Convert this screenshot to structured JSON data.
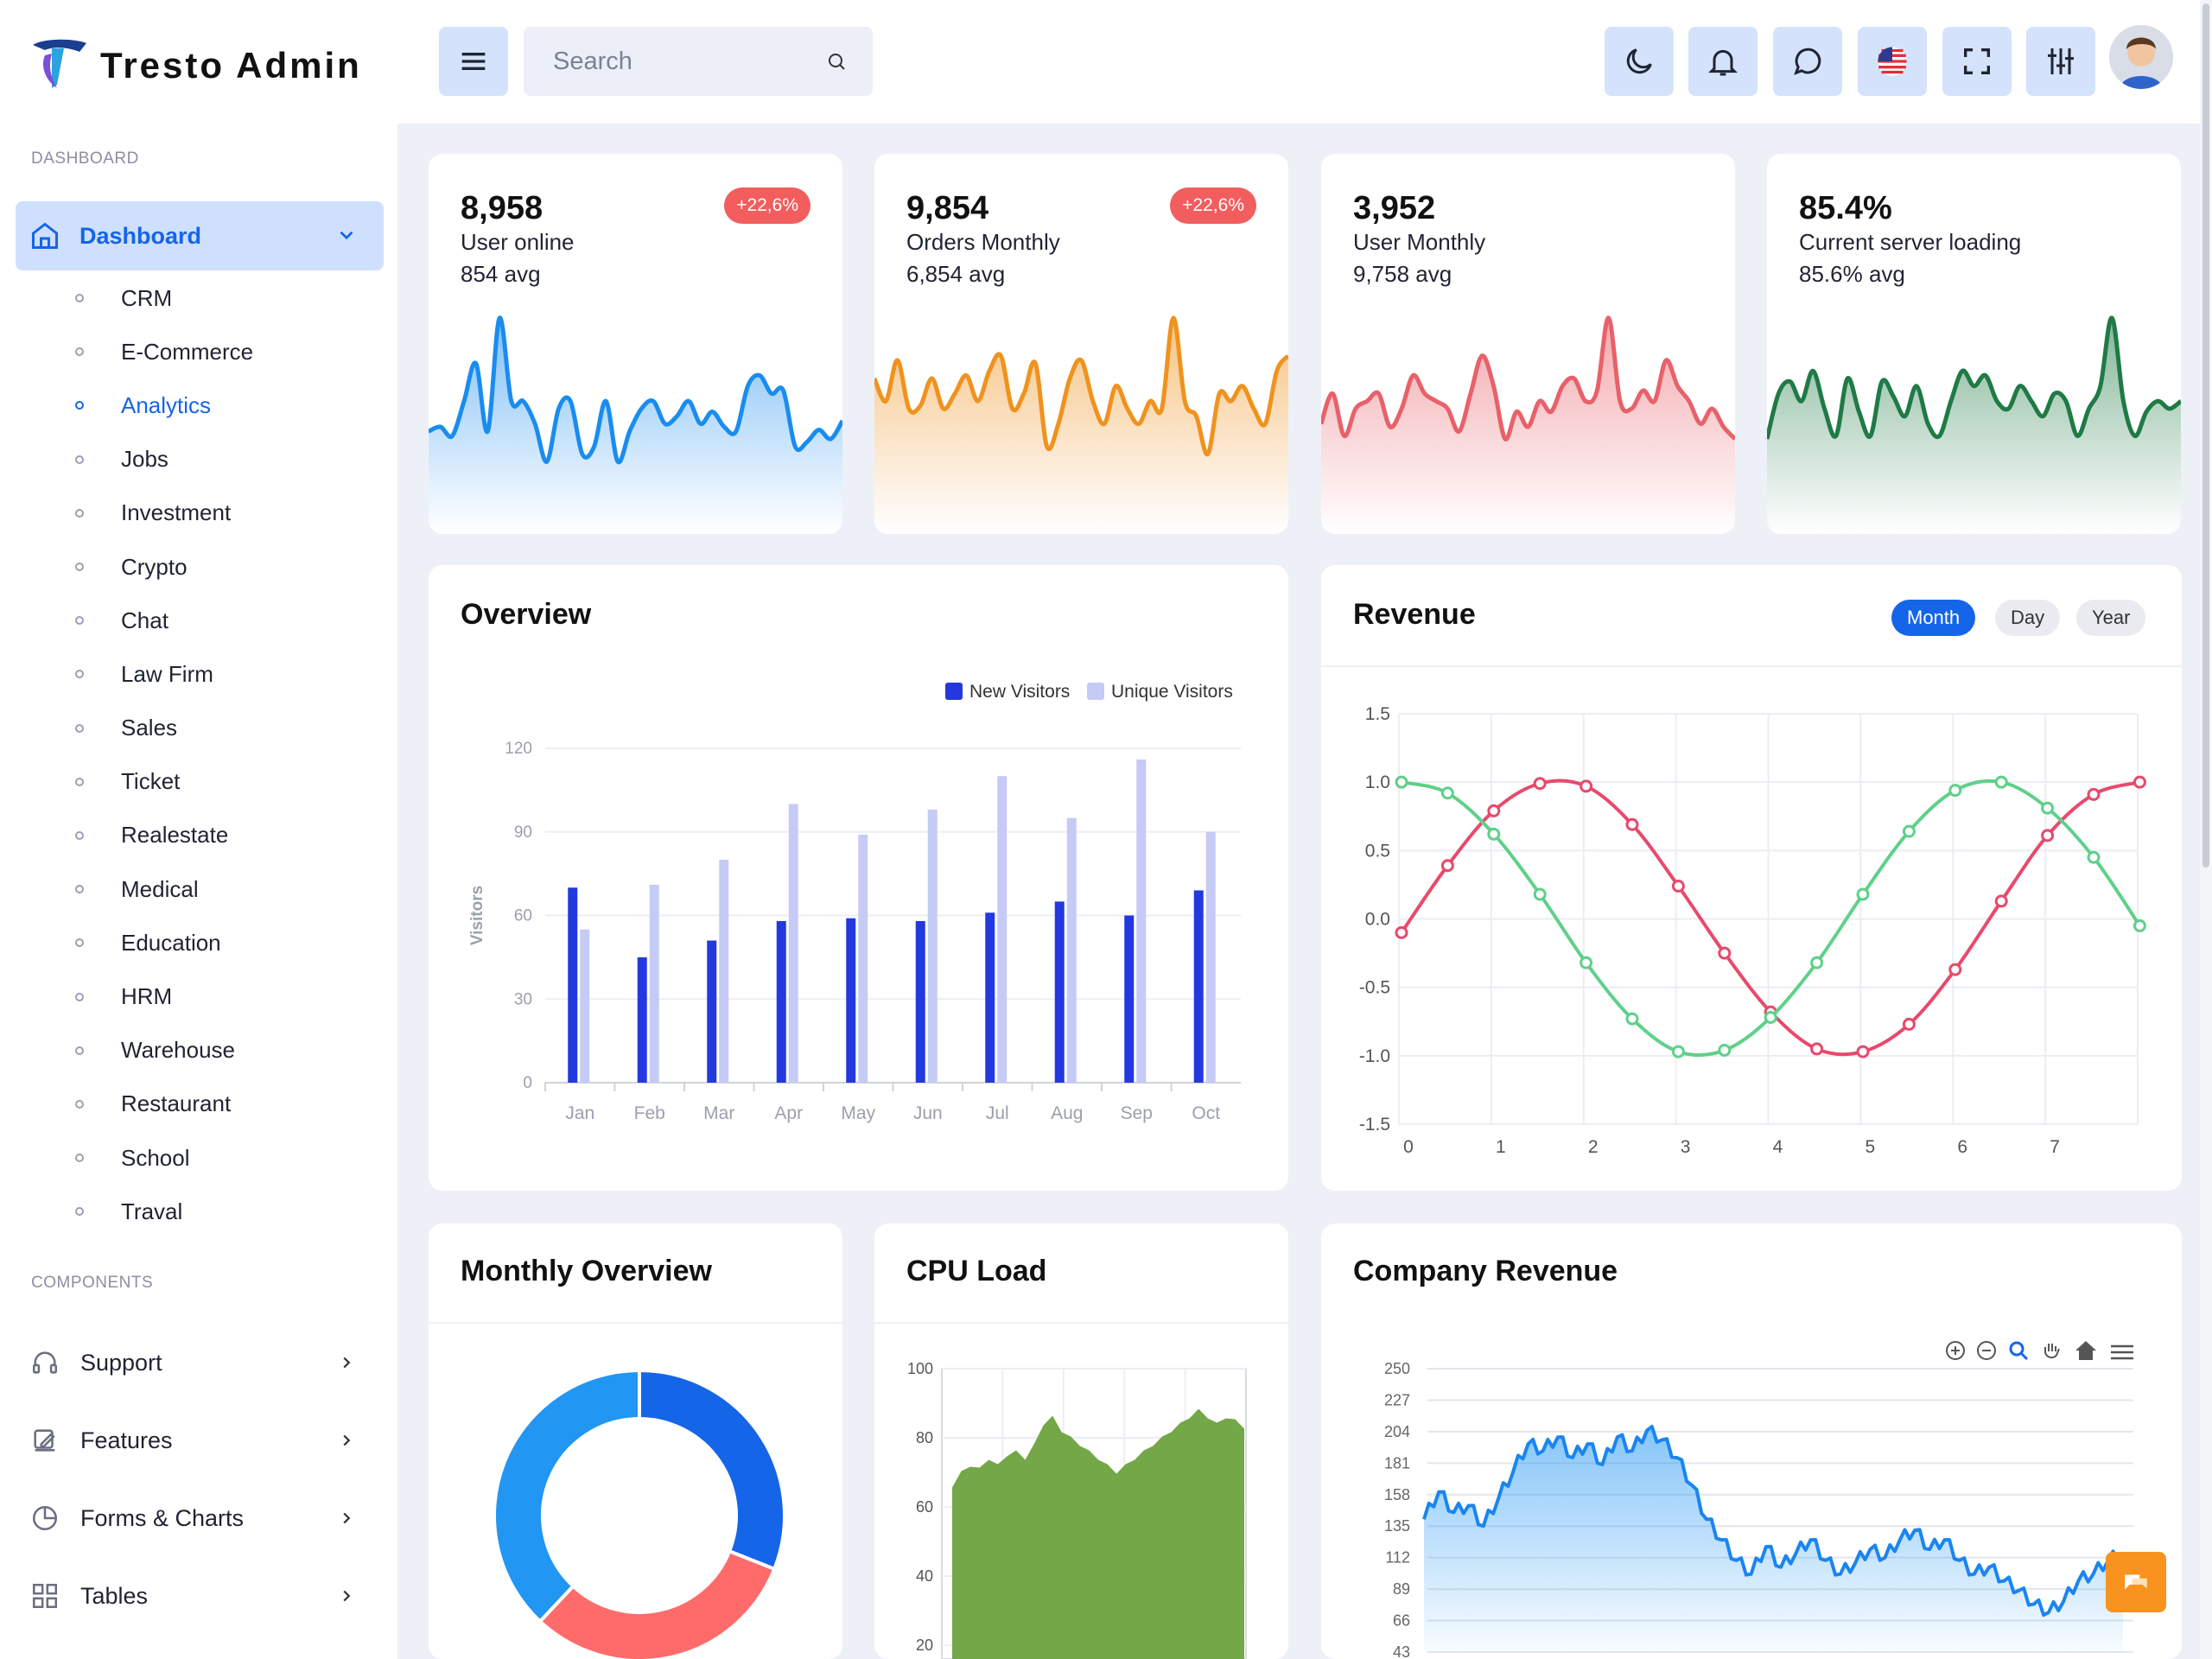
{
  "brand": {
    "name": "Tresto Admin"
  },
  "sidebar": {
    "dashboard_section": "DASHBOARD",
    "dashboard_label": "Dashboard",
    "items": [
      {
        "label": "CRM"
      },
      {
        "label": "E-Commerce"
      },
      {
        "label": "Analytics",
        "active": true
      },
      {
        "label": "Jobs"
      },
      {
        "label": "Investment"
      },
      {
        "label": "Crypto"
      },
      {
        "label": "Chat"
      },
      {
        "label": "Law Firm"
      },
      {
        "label": "Sales"
      },
      {
        "label": "Ticket"
      },
      {
        "label": "Realestate"
      },
      {
        "label": "Medical"
      },
      {
        "label": "Education"
      },
      {
        "label": "HRM"
      },
      {
        "label": "Warehouse"
      },
      {
        "label": "Restaurant"
      },
      {
        "label": "School"
      },
      {
        "label": "Traval"
      }
    ],
    "components_section": "COMPONENTS",
    "components": [
      {
        "label": "Support",
        "icon": "headphones-icon"
      },
      {
        "label": "Features",
        "icon": "edit-icon"
      },
      {
        "label": "Forms & Charts",
        "icon": "pie-chart-icon"
      },
      {
        "label": "Tables",
        "icon": "grid-icon"
      }
    ]
  },
  "header": {
    "search_placeholder": "Search",
    "icons": [
      "menu-icon",
      "search-icon",
      "moon-icon",
      "bell-icon",
      "chat-bubble-icon",
      "us-flag-icon",
      "fullscreen-icon",
      "sliders-icon"
    ]
  },
  "stats": [
    {
      "value": "8,958",
      "label": "User online",
      "avg": "854 avg",
      "badge": "+22,6%",
      "color": "#1a8cf0"
    },
    {
      "value": "9,854",
      "label": "Orders Monthly",
      "avg": "6,854 avg",
      "badge": "+22,6%",
      "color": "#f0921e"
    },
    {
      "value": "3,952",
      "label": "User Monthly",
      "avg": "9,758 avg",
      "badge": "",
      "color": "#e8616a"
    },
    {
      "value": "85.4%",
      "label": "Current server loading",
      "avg": "85.6% avg",
      "badge": "",
      "color": "#1f7a45"
    }
  ],
  "overview": {
    "title": "Overview",
    "chart_data": {
      "type": "bar",
      "categories": [
        "Jan",
        "Feb",
        "Mar",
        "Apr",
        "May",
        "Jun",
        "Jul",
        "Aug",
        "Sep",
        "Oct"
      ],
      "series": [
        {
          "name": "New Visitors",
          "values": [
            70,
            45,
            51,
            58,
            59,
            58,
            61,
            65,
            60,
            69
          ],
          "color": "#2438e0"
        },
        {
          "name": "Unique Visitors",
          "values": [
            55,
            71,
            80,
            100,
            89,
            98,
            110,
            95,
            116,
            90
          ],
          "color": "#c5cbf5"
        }
      ],
      "ylabel": "Visitors",
      "ylim": [
        0,
        120
      ],
      "yticks": [
        0,
        30,
        60,
        90,
        120
      ],
      "legend": "top-right"
    }
  },
  "revenue": {
    "title": "Revenue",
    "tabs": [
      {
        "label": "Month",
        "active": true
      },
      {
        "label": "Day"
      },
      {
        "label": "Year"
      }
    ],
    "chart_data": {
      "type": "line",
      "x": [
        0,
        0.5,
        1,
        1.5,
        2,
        2.5,
        3,
        3.5,
        4,
        4.5,
        5,
        5.5,
        6,
        6.5,
        7,
        7.5,
        8
      ],
      "series": [
        {
          "name": "",
          "color": "#e8496c",
          "values": [
            -0.1,
            0.39,
            0.79,
            0.99,
            0.97,
            0.69,
            0.24,
            -0.25,
            -0.68,
            -0.95,
            -0.97,
            -0.77,
            -0.37,
            0.13,
            0.61,
            0.91,
            1.0
          ]
        },
        {
          "name": "",
          "color": "#5fd08a",
          "values": [
            1.0,
            0.92,
            0.62,
            0.18,
            -0.32,
            -0.73,
            -0.97,
            -0.96,
            -0.72,
            -0.32,
            0.18,
            0.64,
            0.94,
            1.0,
            0.81,
            0.45,
            -0.05
          ]
        }
      ],
      "xticks": [
        "0",
        "1",
        "2",
        "3",
        "4",
        "5",
        "6",
        "7"
      ],
      "yticks": [
        "-1.5",
        "-1.0",
        "-0.5",
        "0.0",
        "0.5",
        "1.0",
        "1.5"
      ],
      "ylim": [
        -1.5,
        1.5
      ],
      "grid": true
    }
  },
  "monthly_overview": {
    "title": "Monthly Overview",
    "chart_data": {
      "type": "pie",
      "slices": [
        {
          "value": 31,
          "color": "#1565e8"
        },
        {
          "value": 31,
          "color": "#ff6b6b"
        },
        {
          "value": 38,
          "color": "#2196f3"
        }
      ]
    }
  },
  "cpu_load": {
    "title": "CPU Load",
    "chart_data": {
      "type": "area",
      "yticks": [
        "100",
        "80",
        "60",
        "40",
        "20"
      ],
      "ylim": [
        20,
        100
      ],
      "values": [
        66,
        70,
        72,
        71,
        74,
        72,
        75,
        76,
        74,
        78,
        84,
        86,
        82,
        80,
        78,
        76,
        74,
        72,
        70,
        72,
        74,
        76,
        78,
        80,
        82,
        84,
        86,
        88,
        86,
        84,
        86,
        85,
        83
      ],
      "color": "#74a747"
    }
  },
  "company_revenue": {
    "title": "Company Revenue",
    "toolbar_icons": [
      "zoom-in-icon",
      "zoom-out-icon",
      "magnifier-icon",
      "pan-hand-icon",
      "home-icon",
      "menu-lines-icon"
    ],
    "chart_data": {
      "type": "area",
      "yticks": [
        "250",
        "227",
        "204",
        "181",
        "158",
        "135",
        "112",
        "89",
        "66",
        "43"
      ],
      "ylim": [
        43,
        250
      ],
      "values": [
        140,
        160,
        145,
        150,
        135,
        155,
        175,
        195,
        190,
        200,
        185,
        195,
        180,
        200,
        190,
        205,
        198,
        185,
        165,
        140,
        125,
        110,
        100,
        120,
        105,
        115,
        125,
        110,
        100,
        108,
        118,
        112,
        125,
        132,
        118,
        125,
        110,
        100,
        105,
        95,
        88,
        78,
        72,
        80,
        95,
        100,
        110,
        115
      ]
    }
  }
}
